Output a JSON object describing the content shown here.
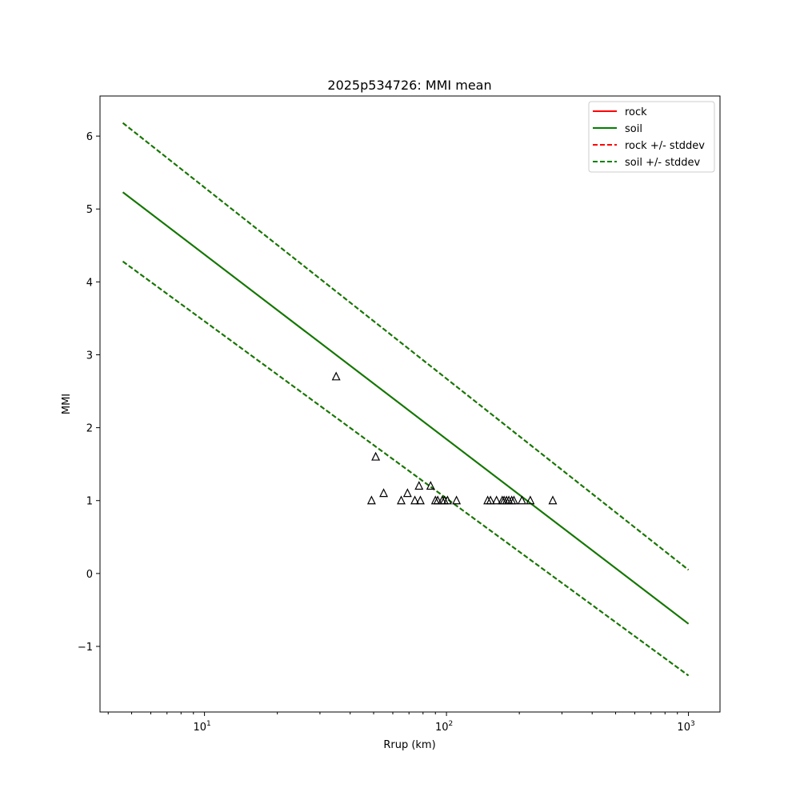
{
  "chart_data": {
    "type": "line",
    "title": "2025p534726: MMI mean",
    "xlabel": "Rrup (km)",
    "ylabel": "MMI",
    "xscale": "log",
    "xlim": [
      3.7,
      1350
    ],
    "ylim": [
      -1.9,
      6.55
    ],
    "x_ticks": [
      {
        "value": 10,
        "base": "10",
        "exp": "1"
      },
      {
        "value": 100,
        "base": "10",
        "exp": "2"
      },
      {
        "value": 1000,
        "base": "10",
        "exp": "3"
      }
    ],
    "y_ticks": [
      {
        "value": -1,
        "label": "−1"
      },
      {
        "value": 0,
        "label": "0"
      },
      {
        "value": 1,
        "label": "1"
      },
      {
        "value": 2,
        "label": "2"
      },
      {
        "value": 3,
        "label": "3"
      },
      {
        "value": 4,
        "label": "4"
      },
      {
        "value": 5,
        "label": "5"
      },
      {
        "value": 6,
        "label": "6"
      }
    ],
    "grid": false,
    "legend_position": "top-right",
    "series": [
      {
        "name": "rock",
        "style": "solid",
        "color": "#ff0000",
        "x": [
          4.6,
          1000
        ],
        "y": [
          5.23,
          -0.69
        ]
      },
      {
        "name": "soil",
        "style": "solid",
        "color": "#008000",
        "x": [
          4.6,
          1000
        ],
        "y": [
          5.23,
          -0.69
        ]
      },
      {
        "name": "rock +/- stddev",
        "style": "dashed",
        "color": "#ff0000",
        "upper": {
          "x": [
            4.6,
            1000
          ],
          "y": [
            6.18,
            0.05
          ]
        },
        "lower": {
          "x": [
            4.6,
            1000
          ],
          "y": [
            4.28,
            -1.4
          ]
        }
      },
      {
        "name": "soil +/- stddev",
        "style": "dashed",
        "color": "#008000",
        "upper": {
          "x": [
            4.6,
            1000
          ],
          "y": [
            6.18,
            0.05
          ]
        },
        "lower": {
          "x": [
            4.6,
            1000
          ],
          "y": [
            4.28,
            -1.4
          ]
        }
      }
    ],
    "observations": {
      "marker": "triangle",
      "color": "#000000",
      "points": [
        {
          "x": 35,
          "y": 2.7
        },
        {
          "x": 51,
          "y": 1.6
        },
        {
          "x": 49,
          "y": 1.0
        },
        {
          "x": 55,
          "y": 1.1
        },
        {
          "x": 65,
          "y": 1.0
        },
        {
          "x": 69,
          "y": 1.1
        },
        {
          "x": 74,
          "y": 1.0
        },
        {
          "x": 77,
          "y": 1.2
        },
        {
          "x": 78,
          "y": 1.0
        },
        {
          "x": 86,
          "y": 1.2
        },
        {
          "x": 90,
          "y": 1.0
        },
        {
          "x": 92,
          "y": 1.0
        },
        {
          "x": 96,
          "y": 1.0
        },
        {
          "x": 98,
          "y": 1.0
        },
        {
          "x": 101,
          "y": 1.0
        },
        {
          "x": 110,
          "y": 1.0
        },
        {
          "x": 148,
          "y": 1.0
        },
        {
          "x": 152,
          "y": 1.0
        },
        {
          "x": 161,
          "y": 1.0
        },
        {
          "x": 170,
          "y": 1.0
        },
        {
          "x": 173,
          "y": 1.0
        },
        {
          "x": 177,
          "y": 1.0
        },
        {
          "x": 181,
          "y": 1.0
        },
        {
          "x": 186,
          "y": 1.0
        },
        {
          "x": 190,
          "y": 1.0
        },
        {
          "x": 205,
          "y": 1.0
        },
        {
          "x": 222,
          "y": 1.0
        },
        {
          "x": 275,
          "y": 1.0
        }
      ]
    }
  }
}
